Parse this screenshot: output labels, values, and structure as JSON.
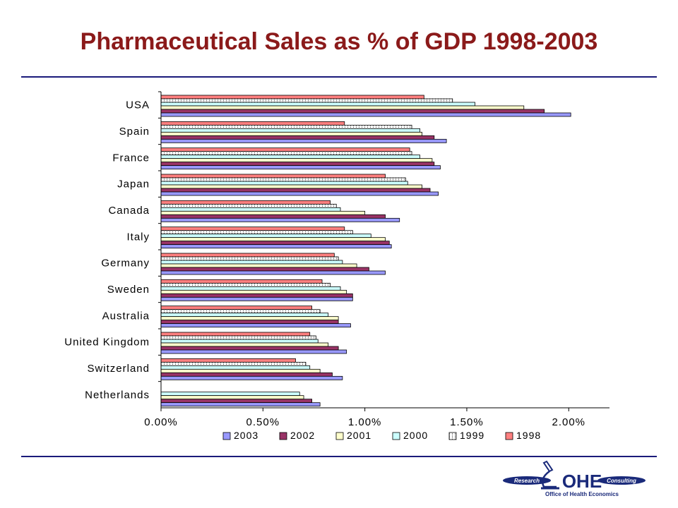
{
  "title": "Pharmaceutical Sales as % of GDP 1998-2003",
  "chart_data": {
    "type": "bar",
    "orientation": "horizontal",
    "categories": [
      "USA",
      "Spain",
      "France",
      "Japan",
      "Canada",
      "Italy",
      "Germany",
      "Sweden",
      "Australia",
      "United Kingdom",
      "Switzerland",
      "Netherlands"
    ],
    "series": [
      {
        "name": "2003",
        "color": "#9999ff",
        "values": [
          2.01,
          1.4,
          1.37,
          1.36,
          1.17,
          1.13,
          1.1,
          0.94,
          0.93,
          0.91,
          0.89,
          0.78
        ]
      },
      {
        "name": "2002",
        "color": "#993366",
        "values": [
          1.88,
          1.34,
          1.34,
          1.32,
          1.1,
          1.12,
          1.02,
          0.94,
          0.87,
          0.87,
          0.84,
          0.74
        ]
      },
      {
        "name": "2001",
        "color": "#ffffcc",
        "values": [
          1.78,
          1.28,
          1.33,
          1.28,
          1.0,
          1.1,
          0.96,
          0.91,
          0.87,
          0.82,
          0.78,
          0.7
        ]
      },
      {
        "name": "2000",
        "color": "#ccffff",
        "values": [
          1.54,
          1.27,
          1.27,
          1.21,
          0.88,
          1.03,
          0.89,
          0.88,
          0.82,
          0.77,
          0.73,
          0.68
        ]
      },
      {
        "name": "1999",
        "color": "#ffffff",
        "values": [
          1.43,
          1.23,
          1.23,
          1.2,
          0.86,
          0.94,
          0.87,
          0.83,
          0.78,
          0.76,
          0.71,
          null
        ]
      },
      {
        "name": "1998",
        "color": "#ff8080",
        "values": [
          1.29,
          0.9,
          1.22,
          1.1,
          0.83,
          0.9,
          0.85,
          0.79,
          0.74,
          0.73,
          0.66,
          null
        ]
      }
    ],
    "x_ticks": [
      "0.00%",
      "0.50%",
      "1.00%",
      "1.50%",
      "2.00%"
    ],
    "xlim": [
      0,
      2.2
    ],
    "legend_position": "bottom",
    "grid": false
  },
  "logo": {
    "brand": "OHE",
    "left": "Research",
    "right": "Consulting",
    "tagline": "Office of Health Economics",
    "color": "#1a2a7a"
  }
}
